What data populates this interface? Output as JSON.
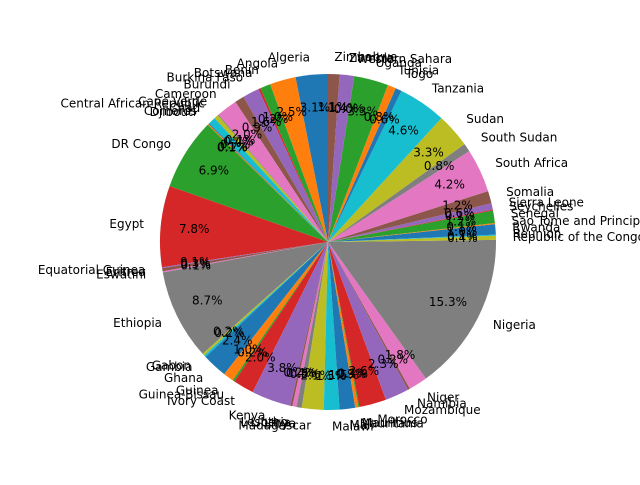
{
  "chart_data": {
    "type": "pie",
    "title": "",
    "start_angle_deg": 90,
    "direction": "counterclockwise",
    "percent_format": "one-decimal",
    "palette": [
      "#1f77b4",
      "#ff7f0e",
      "#2ca02c",
      "#d62728",
      "#9467bd",
      "#8c564b",
      "#e377c2",
      "#7f7f7f",
      "#bcbd22",
      "#17becf"
    ],
    "slices": [
      {
        "label": "Algeria",
        "value": 3.1
      },
      {
        "label": "Angola",
        "value": 2.5
      },
      {
        "label": "Benin",
        "value": 1.0
      },
      {
        "label": "Botswana",
        "value": 0.2
      },
      {
        "label": "Burkina Faso",
        "value": 1.6
      },
      {
        "label": "Burundi",
        "value": 0.9
      },
      {
        "label": "Cameroon",
        "value": 2.0
      },
      {
        "label": "Cape Verde",
        "value": 0.1
      },
      {
        "label": "Central African Republic",
        "value": 0.4
      },
      {
        "label": "Chad",
        "value": 0.7
      },
      {
        "label": "Comoros",
        "value": 0.1
      },
      {
        "label": "Djibouti",
        "value": 0.1
      },
      {
        "label": "DR Congo",
        "value": 6.9
      },
      {
        "label": "Egypt",
        "value": 7.8
      },
      {
        "label": "Equatorial Guinea",
        "value": 0.1
      },
      {
        "label": "Eritrea",
        "value": 0.3
      },
      {
        "label": "Eswatini",
        "value": 0.1
      },
      {
        "label": "Ethiopia",
        "value": 8.7
      },
      {
        "label": "Gabon",
        "value": 0.2
      },
      {
        "label": "Gambia",
        "value": 0.2
      },
      {
        "label": "Ghana",
        "value": 2.4
      },
      {
        "label": "Guinea",
        "value": 1.0
      },
      {
        "label": "Guinea-Bissau",
        "value": 0.2
      },
      {
        "label": "Ivory Coast",
        "value": 2.0
      },
      {
        "label": "Kenya",
        "value": 3.8
      },
      {
        "label": "Lesotho",
        "value": 0.2
      },
      {
        "label": "Liberia",
        "value": 0.4
      },
      {
        "label": "Libya",
        "value": 0.5
      },
      {
        "label": "Madagascar",
        "value": 2.1
      },
      {
        "label": "Malawi",
        "value": 1.5
      },
      {
        "label": "Mali",
        "value": 1.5
      },
      {
        "label": "Mauritania",
        "value": 0.3
      },
      {
        "label": "Mauritius",
        "value": 0.1
      },
      {
        "label": "Morocco",
        "value": 2.6
      },
      {
        "label": "Mozambique",
        "value": 2.3
      },
      {
        "label": "Namibia",
        "value": 0.2
      },
      {
        "label": "Niger",
        "value": 1.8
      },
      {
        "label": "Nigeria",
        "value": 15.3
      },
      {
        "label": "Republic of the Congo",
        "value": 0.4
      },
      {
        "label": "Reunion",
        "value": 0.1
      },
      {
        "label": "Rwanda",
        "value": 1.0
      },
      {
        "label": "Sao Tome and Principe",
        "value": 0.1
      },
      {
        "label": "Senegal",
        "value": 1.2
      },
      {
        "label": "Seychelles",
        "value": 0.1
      },
      {
        "label": "Sierra Leone",
        "value": 0.6
      },
      {
        "label": "Somalia",
        "value": 1.2
      },
      {
        "label": "South Africa",
        "value": 4.2
      },
      {
        "label": "South Sudan",
        "value": 0.8
      },
      {
        "label": "Sudan",
        "value": 3.3
      },
      {
        "label": "Tanzania",
        "value": 4.6
      },
      {
        "label": "Togo",
        "value": 0.6
      },
      {
        "label": "Tunisia",
        "value": 0.8
      },
      {
        "label": "Uganda",
        "value": 3.3
      },
      {
        "label": "Western Sahara",
        "value": 0.0
      },
      {
        "label": "Zambia",
        "value": 1.4
      },
      {
        "label": "Zimbabwe",
        "value": 1.1
      }
    ]
  }
}
